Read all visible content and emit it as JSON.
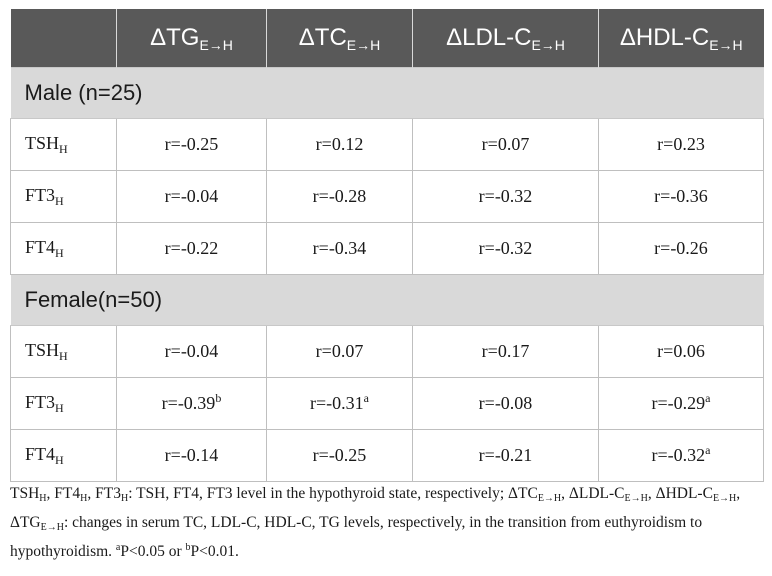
{
  "header": {
    "columns": [
      {
        "base": "",
        "sub": ""
      },
      {
        "base": "ΔTG",
        "sub": "E→H"
      },
      {
        "base": "ΔTC",
        "sub": "E→H"
      },
      {
        "base": "ΔLDL-C",
        "sub": "E→H"
      },
      {
        "base": "ΔHDL-C",
        "sub": "E→H"
      }
    ]
  },
  "groups": [
    {
      "label": "Male (n=25)",
      "rows": [
        {
          "var": "TSH",
          "var_sub": "H",
          "cells": [
            {
              "v": "r=-0.25",
              "sup": ""
            },
            {
              "v": "r=0.12",
              "sup": ""
            },
            {
              "v": "r=0.07",
              "sup": ""
            },
            {
              "v": "r=0.23",
              "sup": ""
            }
          ]
        },
        {
          "var": "FT3",
          "var_sub": "H",
          "cells": [
            {
              "v": "r=-0.04",
              "sup": ""
            },
            {
              "v": "r=-0.28",
              "sup": ""
            },
            {
              "v": "r=-0.32",
              "sup": ""
            },
            {
              "v": "r=-0.36",
              "sup": ""
            }
          ]
        },
        {
          "var": "FT4",
          "var_sub": "H",
          "cells": [
            {
              "v": "r=-0.22",
              "sup": ""
            },
            {
              "v": "r=-0.34",
              "sup": ""
            },
            {
              "v": "r=-0.32",
              "sup": ""
            },
            {
              "v": "r=-0.26",
              "sup": ""
            }
          ]
        }
      ]
    },
    {
      "label": "Female(n=50)",
      "rows": [
        {
          "var": "TSH",
          "var_sub": "H",
          "cells": [
            {
              "v": "r=-0.04",
              "sup": ""
            },
            {
              "v": "r=0.07",
              "sup": ""
            },
            {
              "v": "r=0.17",
              "sup": ""
            },
            {
              "v": "r=0.06",
              "sup": ""
            }
          ]
        },
        {
          "var": "FT3",
          "var_sub": "H",
          "cells": [
            {
              "v": "r=-0.39",
              "sup": "b"
            },
            {
              "v": "r=-0.31",
              "sup": "a"
            },
            {
              "v": "r=-0.08",
              "sup": ""
            },
            {
              "v": "r=-0.29",
              "sup": "a"
            }
          ]
        },
        {
          "var": "FT4",
          "var_sub": "H",
          "cells": [
            {
              "v": "r=-0.14",
              "sup": ""
            },
            {
              "v": "r=-0.25",
              "sup": ""
            },
            {
              "v": "r=-0.21",
              "sup": ""
            },
            {
              "v": "r=-0.32",
              "sup": "a"
            }
          ]
        }
      ]
    }
  ],
  "footnote": {
    "segments": [
      {
        "t": "TSH"
      },
      {
        "sub": "H"
      },
      {
        "t": ", FT4"
      },
      {
        "sub": "H"
      },
      {
        "t": ", FT3"
      },
      {
        "sub": "H"
      },
      {
        "t": ": TSH, FT4, FT3 level in the hypothyroid state, respectively; ΔTC"
      },
      {
        "sub": "E→H"
      },
      {
        "t": ", ΔLDL-C"
      },
      {
        "sub": "E→H"
      },
      {
        "t": ", ΔHDL-C"
      },
      {
        "sub": "E→H"
      },
      {
        "t": ", ΔTG"
      },
      {
        "sub": "E→H"
      },
      {
        "t": ": changes in serum TC, LDL-C, HDL-C, TG levels, respectively, in the transition from euthyroidism to hypothyroidism. "
      },
      {
        "sup": "a"
      },
      {
        "t": "P<0.05 or "
      },
      {
        "sup": "b"
      },
      {
        "t": "P<0.01."
      }
    ]
  }
}
